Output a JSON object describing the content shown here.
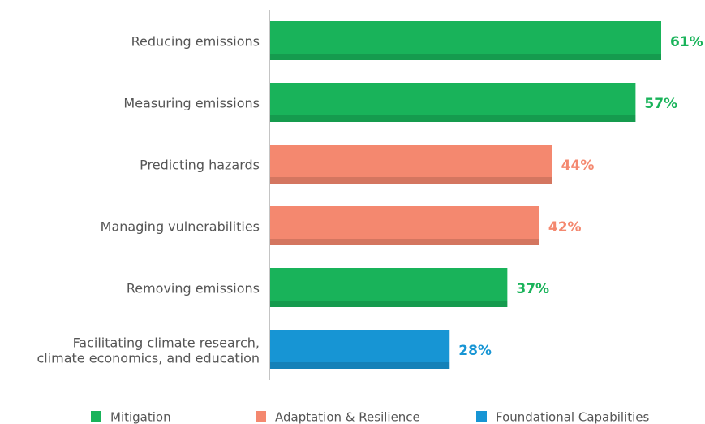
{
  "chart_data": {
    "type": "hbar",
    "categories": [
      "Reducing emissions",
      "Measuring emissions",
      "Predicting hazards",
      "Managing vulnerabilities",
      "Removing emissions",
      "Facilitating climate research,\nclimate economics, and education"
    ],
    "values": [
      61,
      57,
      44,
      42,
      37,
      28
    ],
    "value_labels": [
      "61%",
      "57%",
      "44%",
      "42%",
      "37%",
      "28%"
    ],
    "colors": [
      "#19b35a",
      "#19b35a",
      "#f4886f",
      "#f4886f",
      "#19b35a",
      "#1795d4"
    ],
    "legend": [
      {
        "name": "Mitigation",
        "color": "#19b35a"
      },
      {
        "name": "Adaptation & Resilience",
        "color": "#f4886f"
      },
      {
        "name": "Foundational Capabilities",
        "color": "#1795d4"
      }
    ]
  }
}
